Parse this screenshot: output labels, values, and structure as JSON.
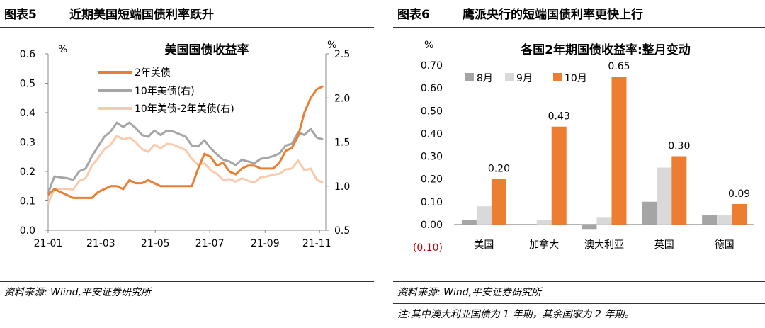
{
  "left_panel": {
    "figure_no": "图表5",
    "title": "近期美国短端国债利率跃升",
    "source": "资料来源: Wiind,平安证券研究所"
  },
  "right_panel": {
    "figure_no": "图表6",
    "title": "鹰派央行的短端国债利率更快上行",
    "source": "资料来源: Wind,平安证券研究所",
    "note": "注:其中澳大利亚国债为 1 年期，其余国家为 2 年期。"
  },
  "chart_data": [
    {
      "type": "line",
      "title": "美国国债收益率",
      "y_unit_left": "%",
      "y_unit_right": "%",
      "ylim_left": [
        0.0,
        0.6
      ],
      "ylim_right": [
        0.5,
        2.5
      ],
      "yticks_left": [
        "0.0",
        "0.1",
        "0.2",
        "0.3",
        "0.4",
        "0.5",
        "0.6"
      ],
      "yticks_right": [
        "0.5",
        "1.0",
        "1.5",
        "2.0",
        "2.5"
      ],
      "xticks": [
        "21-01",
        "21-03",
        "21-05",
        "21-07",
        "21-09",
        "21-11"
      ],
      "xlim": [
        "2021-01-01",
        "2021-11-08"
      ],
      "legend_position": "top-left",
      "grid": false,
      "series": [
        {
          "name": "2年美债",
          "axis": "left",
          "color": "#ed7d31",
          "points": [
            [
              "2021-01-01",
              0.12
            ],
            [
              "2021-01-08",
              0.14
            ],
            [
              "2021-01-15",
              0.13
            ],
            [
              "2021-01-22",
              0.12
            ],
            [
              "2021-01-29",
              0.11
            ],
            [
              "2021-02-05",
              0.11
            ],
            [
              "2021-02-12",
              0.11
            ],
            [
              "2021-02-19",
              0.11
            ],
            [
              "2021-02-26",
              0.13
            ],
            [
              "2021-03-05",
              0.14
            ],
            [
              "2021-03-12",
              0.15
            ],
            [
              "2021-03-19",
              0.15
            ],
            [
              "2021-03-26",
              0.14
            ],
            [
              "2021-04-02",
              0.17
            ],
            [
              "2021-04-09",
              0.16
            ],
            [
              "2021-04-16",
              0.16
            ],
            [
              "2021-04-23",
              0.17
            ],
            [
              "2021-04-30",
              0.16
            ],
            [
              "2021-05-07",
              0.15
            ],
            [
              "2021-05-14",
              0.15
            ],
            [
              "2021-05-21",
              0.15
            ],
            [
              "2021-05-28",
              0.15
            ],
            [
              "2021-06-04",
              0.15
            ],
            [
              "2021-06-11",
              0.15
            ],
            [
              "2021-06-18",
              0.21
            ],
            [
              "2021-06-25",
              0.26
            ],
            [
              "2021-07-02",
              0.25
            ],
            [
              "2021-07-09",
              0.22
            ],
            [
              "2021-07-16",
              0.23
            ],
            [
              "2021-07-23",
              0.2
            ],
            [
              "2021-07-30",
              0.19
            ],
            [
              "2021-08-06",
              0.21
            ],
            [
              "2021-08-13",
              0.22
            ],
            [
              "2021-08-20",
              0.22
            ],
            [
              "2021-08-27",
              0.21
            ],
            [
              "2021-09-03",
              0.21
            ],
            [
              "2021-09-10",
              0.21
            ],
            [
              "2021-09-17",
              0.23
            ],
            [
              "2021-09-24",
              0.27
            ],
            [
              "2021-10-01",
              0.28
            ],
            [
              "2021-10-08",
              0.32
            ],
            [
              "2021-10-15",
              0.4
            ],
            [
              "2021-10-22",
              0.45
            ],
            [
              "2021-10-29",
              0.48
            ],
            [
              "2021-11-05",
              0.49
            ]
          ]
        },
        {
          "name": "10年美债(右)",
          "axis": "right",
          "color": "#a5a5a5",
          "points": [
            [
              "2021-01-01",
              0.92
            ],
            [
              "2021-01-08",
              1.11
            ],
            [
              "2021-01-15",
              1.1
            ],
            [
              "2021-01-22",
              1.09
            ],
            [
              "2021-01-29",
              1.07
            ],
            [
              "2021-02-05",
              1.17
            ],
            [
              "2021-02-12",
              1.2
            ],
            [
              "2021-02-19",
              1.34
            ],
            [
              "2021-02-26",
              1.45
            ],
            [
              "2021-03-05",
              1.56
            ],
            [
              "2021-03-12",
              1.62
            ],
            [
              "2021-03-19",
              1.72
            ],
            [
              "2021-03-26",
              1.67
            ],
            [
              "2021-04-02",
              1.72
            ],
            [
              "2021-04-09",
              1.66
            ],
            [
              "2021-04-16",
              1.58
            ],
            [
              "2021-04-23",
              1.56
            ],
            [
              "2021-04-30",
              1.63
            ],
            [
              "2021-05-07",
              1.58
            ],
            [
              "2021-05-14",
              1.63
            ],
            [
              "2021-05-21",
              1.62
            ],
            [
              "2021-05-28",
              1.59
            ],
            [
              "2021-06-04",
              1.56
            ],
            [
              "2021-06-11",
              1.46
            ],
            [
              "2021-06-18",
              1.45
            ],
            [
              "2021-06-25",
              1.52
            ],
            [
              "2021-07-02",
              1.43
            ],
            [
              "2021-07-09",
              1.36
            ],
            [
              "2021-07-16",
              1.3
            ],
            [
              "2021-07-23",
              1.28
            ],
            [
              "2021-07-30",
              1.24
            ],
            [
              "2021-08-06",
              1.3
            ],
            [
              "2021-08-13",
              1.28
            ],
            [
              "2021-08-20",
              1.26
            ],
            [
              "2021-08-27",
              1.31
            ],
            [
              "2021-09-03",
              1.32
            ],
            [
              "2021-09-10",
              1.34
            ],
            [
              "2021-09-17",
              1.37
            ],
            [
              "2021-09-24",
              1.46
            ],
            [
              "2021-10-01",
              1.48
            ],
            [
              "2021-10-08",
              1.61
            ],
            [
              "2021-10-15",
              1.58
            ],
            [
              "2021-10-22",
              1.65
            ],
            [
              "2021-10-29",
              1.55
            ],
            [
              "2021-11-05",
              1.53
            ]
          ]
        },
        {
          "name": "10年美债-2年美债(右)",
          "axis": "right",
          "color": "#f8cbad",
          "points": [
            [
              "2021-01-01",
              0.8
            ],
            [
              "2021-01-08",
              0.97
            ],
            [
              "2021-01-15",
              0.97
            ],
            [
              "2021-01-22",
              0.97
            ],
            [
              "2021-01-29",
              0.96
            ],
            [
              "2021-02-05",
              1.06
            ],
            [
              "2021-02-12",
              1.09
            ],
            [
              "2021-02-19",
              1.23
            ],
            [
              "2021-02-26",
              1.32
            ],
            [
              "2021-03-05",
              1.42
            ],
            [
              "2021-03-12",
              1.47
            ],
            [
              "2021-03-19",
              1.57
            ],
            [
              "2021-03-26",
              1.53
            ],
            [
              "2021-04-02",
              1.55
            ],
            [
              "2021-04-09",
              1.5
            ],
            [
              "2021-04-16",
              1.42
            ],
            [
              "2021-04-23",
              1.39
            ],
            [
              "2021-04-30",
              1.47
            ],
            [
              "2021-05-07",
              1.43
            ],
            [
              "2021-05-14",
              1.48
            ],
            [
              "2021-05-21",
              1.47
            ],
            [
              "2021-05-28",
              1.44
            ],
            [
              "2021-06-04",
              1.41
            ],
            [
              "2021-06-11",
              1.31
            ],
            [
              "2021-06-18",
              1.24
            ],
            [
              "2021-06-25",
              1.26
            ],
            [
              "2021-07-02",
              1.18
            ],
            [
              "2021-07-09",
              1.14
            ],
            [
              "2021-07-16",
              1.07
            ],
            [
              "2021-07-23",
              1.08
            ],
            [
              "2021-07-30",
              1.05
            ],
            [
              "2021-08-06",
              1.09
            ],
            [
              "2021-08-13",
              1.06
            ],
            [
              "2021-08-20",
              1.04
            ],
            [
              "2021-08-27",
              1.1
            ],
            [
              "2021-09-03",
              1.11
            ],
            [
              "2021-09-10",
              1.13
            ],
            [
              "2021-09-17",
              1.14
            ],
            [
              "2021-09-24",
              1.19
            ],
            [
              "2021-10-01",
              1.2
            ],
            [
              "2021-10-08",
              1.29
            ],
            [
              "2021-10-15",
              1.18
            ],
            [
              "2021-10-22",
              1.2
            ],
            [
              "2021-10-29",
              1.07
            ],
            [
              "2021-11-05",
              1.04
            ]
          ]
        }
      ]
    },
    {
      "type": "bar",
      "title": "各国2年期国债收益率:整月变动",
      "y_unit": "%",
      "ylim": [
        -0.1,
        0.7
      ],
      "yticks": [
        "(0.10)",
        "0.00",
        "0.10",
        "0.20",
        "0.30",
        "0.40",
        "0.50",
        "0.60",
        "0.70"
      ],
      "categories": [
        "美国",
        "加拿大",
        "澳大利亚",
        "英国",
        "德国"
      ],
      "legend_position": "top-left",
      "grid": false,
      "series": [
        {
          "name": "8月",
          "color": "#a5a5a5",
          "values": [
            0.02,
            0.0,
            -0.02,
            0.1,
            0.04
          ]
        },
        {
          "name": "9月",
          "color": "#d9d9d9",
          "values": [
            0.08,
            0.02,
            0.03,
            0.25,
            0.04
          ]
        },
        {
          "name": "10月",
          "color": "#ed7d31",
          "values": [
            0.2,
            0.43,
            0.65,
            0.3,
            0.09
          ]
        }
      ],
      "data_labels": {
        "series": "10月",
        "labels": [
          "0.20",
          "0.43",
          "0.65",
          "0.30",
          "0.09"
        ]
      }
    }
  ]
}
